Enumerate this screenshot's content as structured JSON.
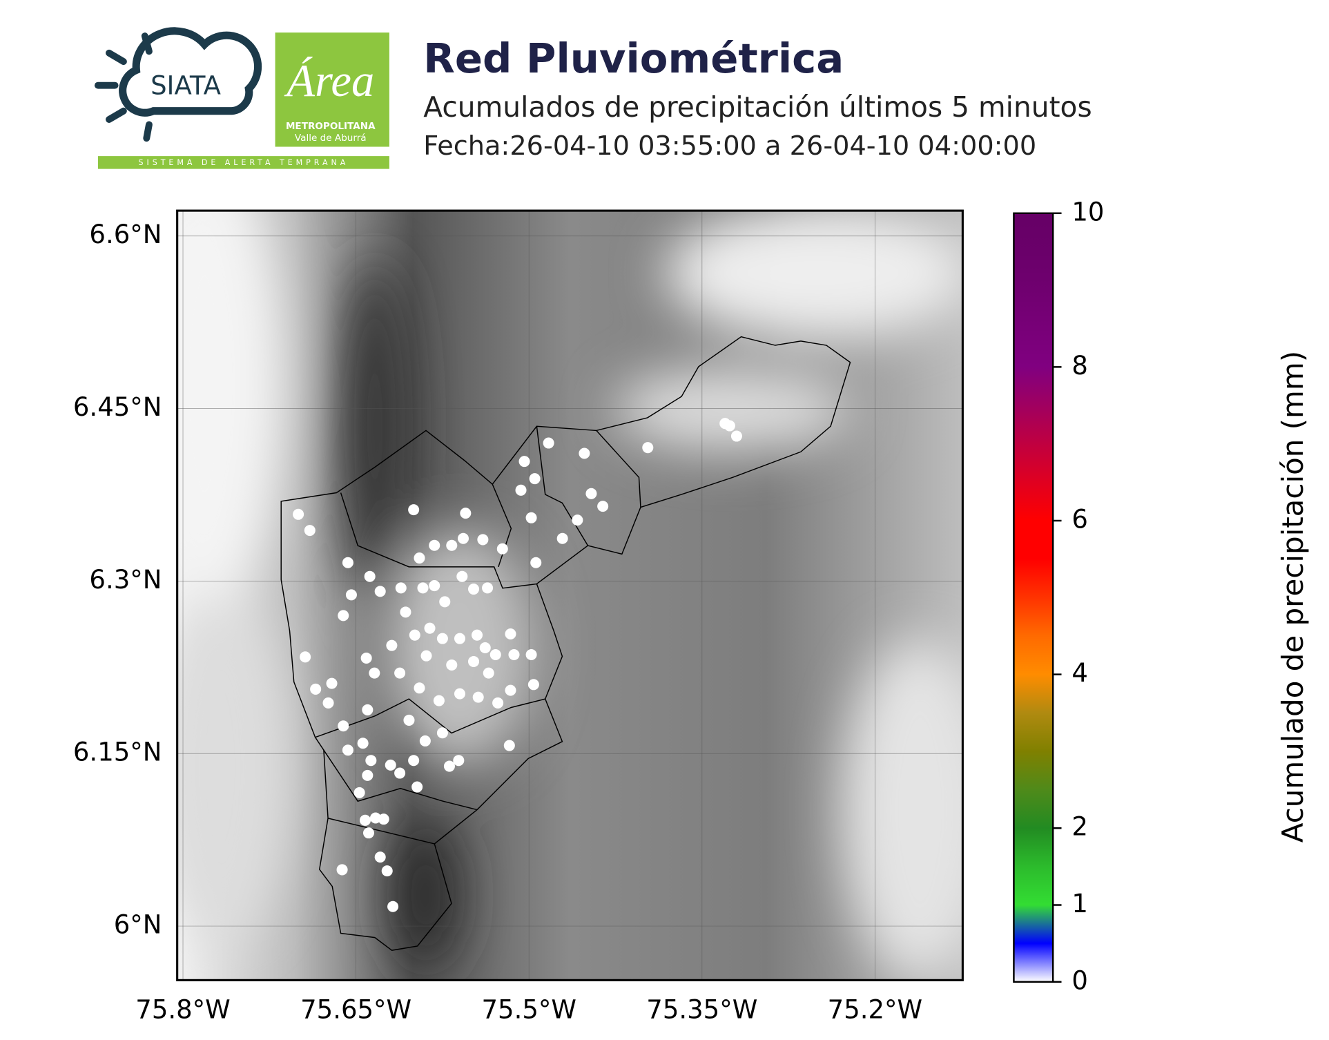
{
  "header": {
    "logo_siata": "SIATA",
    "logo_area": "Área",
    "logo_metro": "METROPOLITANA",
    "logo_valle": "Valle de Aburrá",
    "logo_band": "SISTEMA DE ALERTA TEMPRANA"
  },
  "chart_data": {
    "type": "map",
    "title": "Red Pluviométrica",
    "subtitle": "Acumulados de precipitación últimos 5 minutos",
    "date": "Fecha:26-04-10 03:55:00 a 26-04-10 04:00:00",
    "xlim": [
      -75.805,
      -75.124
    ],
    "ylim": [
      5.953,
      6.622
    ],
    "xticks": [
      {
        "value": -75.8,
        "label": "75.8°W"
      },
      {
        "value": -75.65,
        "label": "75.65°W"
      },
      {
        "value": -75.5,
        "label": "75.5°W"
      },
      {
        "value": -75.35,
        "label": "75.35°W"
      },
      {
        "value": -75.2,
        "label": "75.2°W"
      }
    ],
    "yticks": [
      {
        "value": 6.6,
        "label": "6.6°N"
      },
      {
        "value": 6.45,
        "label": "6.45°N"
      },
      {
        "value": 6.3,
        "label": "6.3°N"
      },
      {
        "value": 6.15,
        "label": "6.15°N"
      },
      {
        "value": 6.0,
        "label": "6°N"
      }
    ],
    "grid": true,
    "stations": {
      "color": "#ffffff",
      "lon": [
        -75.7,
        -75.69,
        -75.657,
        -75.638,
        -75.654,
        -75.661,
        -75.694,
        -75.685,
        -75.671,
        -75.674,
        -75.661,
        -75.657,
        -75.644,
        -75.637,
        -75.647,
        -75.64,
        -75.642,
        -75.633,
        -75.626,
        -75.639,
        -75.629,
        -75.623,
        -75.662,
        -75.618,
        -75.62,
        -75.612,
        -75.6,
        -75.597,
        -75.59,
        -75.604,
        -75.6,
        -75.595,
        -75.582,
        -75.567,
        -75.557,
        -75.555,
        -75.54,
        -75.523,
        -75.507,
        -75.504,
        -75.495,
        -75.483,
        -75.498,
        -75.494,
        -75.471,
        -75.452,
        -75.446,
        -75.436,
        -75.458,
        -75.397,
        -75.33,
        -75.326,
        -75.32,
        -75.629,
        -75.611,
        -75.592,
        -75.582,
        -75.573,
        -75.558,
        -75.548,
        -75.536,
        -75.607,
        -75.599,
        -75.586,
        -75.575,
        -75.56,
        -75.545,
        -75.538,
        -75.529,
        -75.513,
        -75.498,
        -75.516,
        -75.496,
        -75.516,
        -75.527,
        -75.544,
        -75.56,
        -75.578,
        -75.595,
        -75.612,
        -75.634,
        -75.641,
        -75.619,
        -75.589,
        -75.567,
        -75.548,
        -75.535,
        -75.561,
        -75.569,
        -75.517,
        -75.575,
        -75.64
      ],
      "lat": [
        6.358,
        6.344,
        6.316,
        6.304,
        6.288,
        6.27,
        6.234,
        6.206,
        6.211,
        6.194,
        6.174,
        6.153,
        6.159,
        6.144,
        6.116,
        6.131,
        6.092,
        6.094,
        6.093,
        6.081,
        6.06,
        6.048,
        6.049,
        6.017,
        6.14,
        6.133,
        6.144,
        6.121,
        6.161,
        6.179,
        6.362,
        6.32,
        6.331,
        6.331,
        6.337,
        6.359,
        6.336,
        6.328,
        6.379,
        6.404,
        6.389,
        6.42,
        6.355,
        6.316,
        6.337,
        6.411,
        6.376,
        6.365,
        6.353,
        6.416,
        6.437,
        6.435,
        6.426,
        6.291,
        6.294,
        6.294,
        6.296,
        6.282,
        6.304,
        6.293,
        6.294,
        6.273,
        6.253,
        6.259,
        6.25,
        6.25,
        6.253,
        6.242,
        6.236,
        6.236,
        6.236,
        6.254,
        6.21,
        6.205,
        6.194,
        6.199,
        6.202,
        6.196,
        6.207,
        6.22,
        6.22,
        6.233,
        6.244,
        6.235,
        6.227,
        6.23,
        6.22,
        6.144,
        6.139,
        6.157,
        6.168,
        6.188
      ]
    },
    "colorbar": {
      "label": "Acumulado de precipitación (mm)",
      "lim": [
        0,
        10
      ],
      "ticks": [
        0,
        1,
        2,
        4,
        6,
        8,
        10
      ],
      "colors": [
        "#ffffff",
        "#0000ff",
        "#33dd33",
        "#2cbb2c",
        "#228b22",
        "#4f8a1a",
        "#808000",
        "#b08a10",
        "#ff8c00",
        "#ff6a00",
        "#ff3300",
        "#ff0000",
        "#ff0000",
        "#e00020",
        "#c00040",
        "#a00060",
        "#800080",
        "#780078",
        "#700070",
        "#6a006a",
        "#660066"
      ]
    }
  }
}
